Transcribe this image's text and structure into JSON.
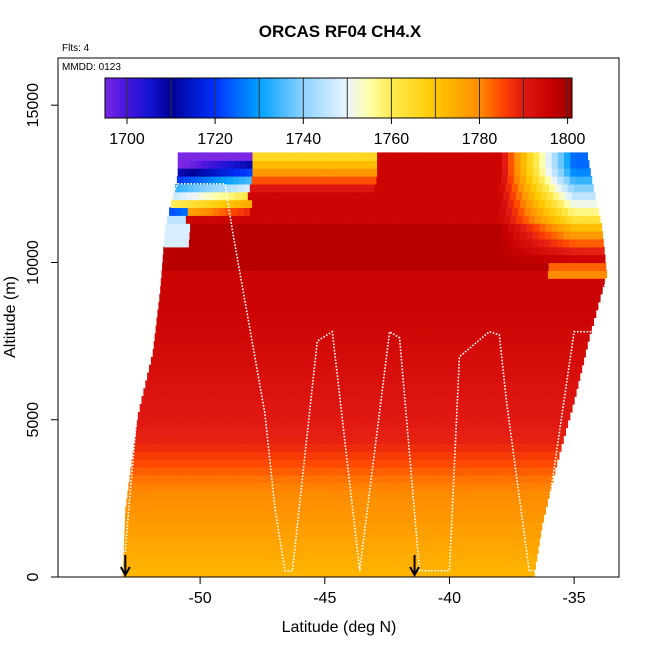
{
  "chart_data": {
    "type": "heatmap",
    "title": "ORCAS RF04 CH4.X",
    "subtitle_flights": "Flts: 4",
    "subtitle_date": "MMDD: 0123",
    "xlabel": "Latitude (deg N)",
    "ylabel": "Altitude (m)",
    "xlim": [
      -55.7,
      -33.2
    ],
    "ylim": [
      0,
      16500
    ],
    "x_ticks": [
      -50,
      -45,
      -40,
      -35
    ],
    "x_tick_labels": [
      "-50",
      "-45",
      "-40",
      "-35"
    ],
    "y_ticks": [
      0,
      5000,
      10000,
      15000
    ],
    "y_tick_labels": [
      "0",
      "5000",
      "10000",
      "15000"
    ],
    "colorbar": {
      "min": 1695,
      "max": 1801,
      "ticks": [
        1700,
        1720,
        1740,
        1760,
        1780,
        1800
      ],
      "tick_labels": [
        "1700",
        "1720",
        "1740",
        "1760",
        "1780",
        "1800"
      ],
      "dividers": [
        1700,
        1710,
        1720,
        1730,
        1740,
        1750,
        1760,
        1770,
        1780,
        1790,
        1800
      ],
      "colors": [
        "#7a28e6",
        "#1a1ad9",
        "#000099",
        "#0033ff",
        "#00aaff",
        "#bfe6ff",
        "#ffff99",
        "#ffcc00",
        "#ff9900",
        "#ff4400",
        "#dd1111",
        "#bb0000"
      ]
    },
    "field": {
      "lat_range": [
        -55.7,
        -33.2
      ],
      "alt_range": [
        0,
        13400
      ],
      "description_values": {
        "low_altitude_ch4": 1774,
        "mid_altitude_ch4": 1790,
        "upper_altitude_ch4": 1795,
        "stratospheric_intrusion_min": 1700
      }
    },
    "flight_track": {
      "lat": [
        -53.0,
        -52.9,
        -52.5,
        -51.8,
        -50.9,
        -49.0,
        -48.7,
        -47.4,
        -47.0,
        -46.6,
        -46.3,
        -45.3,
        -44.7,
        -43.6,
        -42.4,
        -42.0,
        -41.2,
        -40.0,
        -39.6,
        -38.4,
        -38.0,
        -37.7,
        -36.8,
        -36.4,
        -35.0,
        -34.2,
        -33.7
      ],
      "alt": [
        800,
        1800,
        5500,
        11000,
        12500,
        12500,
        11000,
        5200,
        2200,
        200,
        200,
        7500,
        7800,
        200,
        7800,
        7600,
        200,
        200,
        7000,
        7800,
        7700,
        5500,
        200,
        200,
        7800,
        7800,
        9500
      ]
    },
    "markers": [
      {
        "lat": -53.0,
        "label": "↓"
      },
      {
        "lat": -41.4,
        "label": "↓"
      }
    ]
  }
}
